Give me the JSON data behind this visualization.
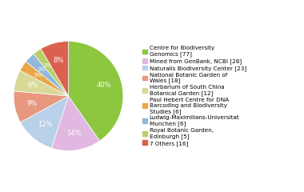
{
  "labels": [
    "Centre for Biodiversity\nGenomics [77]",
    "Mined from GenBank, NCBI [28]",
    "Naturalis Biodiversity Center [23]",
    "National Botanic Garden of\nWales [18]",
    "Herbarium of South China\nBotanical Garden [12]",
    "Paul Hebert Centre for DNA\nBarcoding and Biodiversity\nStudies [6]",
    "Ludwig-Maximilians-Universitat\nMunchen [6]",
    "Royal Botanic Garden,\nEdinburgh [5]",
    "7 Others [16]"
  ],
  "values": [
    77,
    28,
    23,
    18,
    12,
    6,
    6,
    5,
    16
  ],
  "colors": [
    "#8dc63f",
    "#e0b8e0",
    "#b8d0e8",
    "#e89880",
    "#d8d898",
    "#e8a848",
    "#90b8d8",
    "#b8d068",
    "#d9614e"
  ],
  "pct_labels": [
    "40%",
    "14%",
    "12%",
    "9%",
    "6%",
    "3%",
    "3%",
    "2%",
    "8%"
  ],
  "startangle": 90,
  "legend_labels": [
    "Centre for Biodiversity\nGenomics [77]",
    "Mined from GenBank, NCBI [28]",
    "Naturalis Biodiversity Center [23]",
    "National Botanic Garden of\nWales [18]",
    "Herbarium of South China\nBotanical Garden [12]",
    "Paul Hebert Centre for DNA\nBarcoding and Biodiversity\nStudies [6]",
    "Ludwig-Maximilians-Universitat\nMunchen [6]",
    "Royal Botanic Garden,\nEdinburgh [5]",
    "7 Others [16]"
  ]
}
